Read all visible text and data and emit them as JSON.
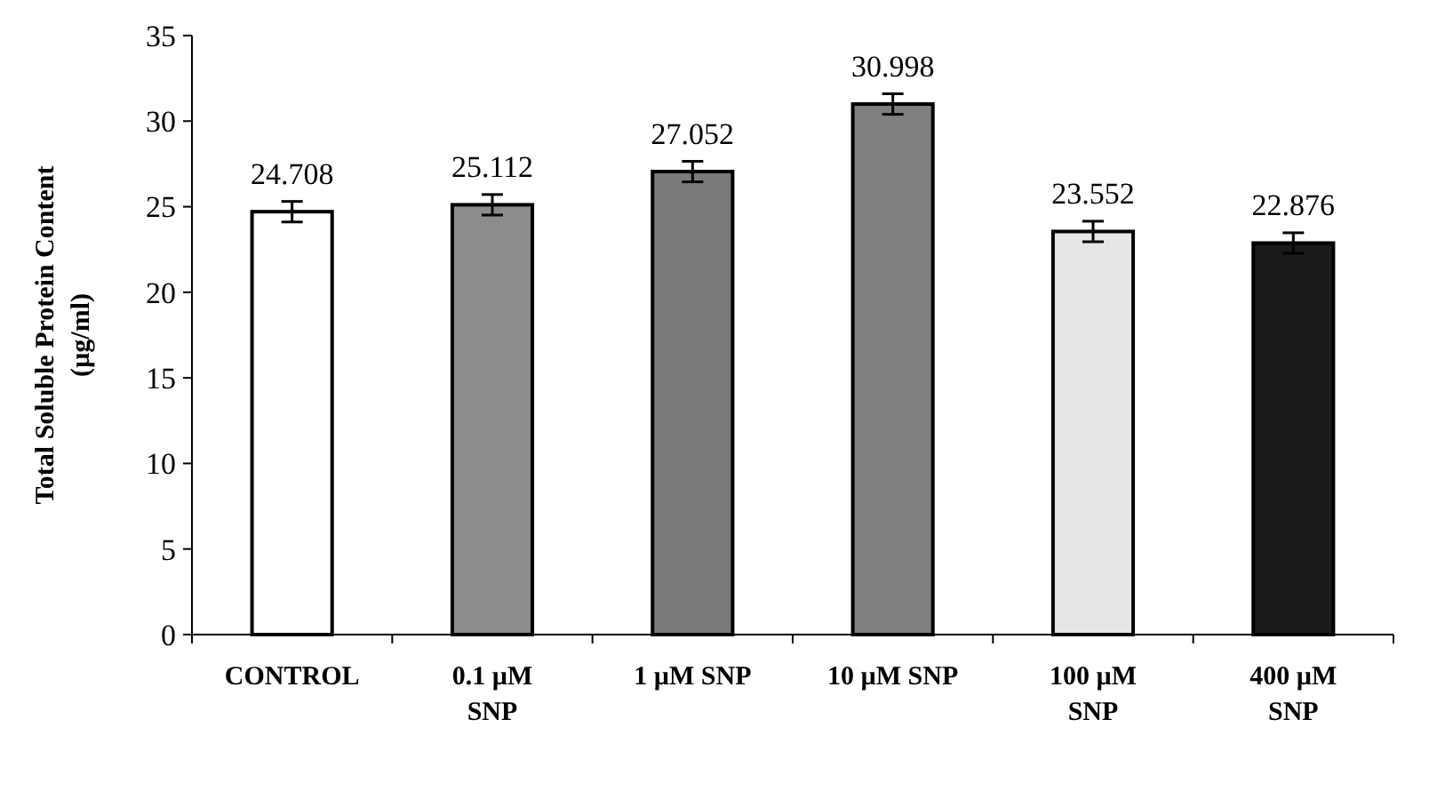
{
  "chart_data": {
    "type": "bar",
    "ylabel": "Total Soluble Protein Content (µg/ml)",
    "categories": [
      "CONTROL",
      "0.1 µM SNP",
      "1 µM SNP",
      "10 µM SNP",
      "100 µM SNP",
      "400 µM SNP"
    ],
    "values": [
      24.708,
      25.112,
      27.052,
      30.998,
      23.552,
      22.876
    ],
    "colors": [
      "#ffffff",
      "#8c8c8c",
      "#7a7a7a",
      "#808080",
      "#e6e6e6",
      "#1a1a1a"
    ],
    "errors": [
      0.6,
      0.6,
      0.6,
      0.6,
      0.6,
      0.6
    ],
    "ylim": [
      0,
      35
    ],
    "yticks": [
      0,
      5,
      10,
      15,
      20,
      25,
      30,
      35
    ],
    "data_labels": true
  }
}
